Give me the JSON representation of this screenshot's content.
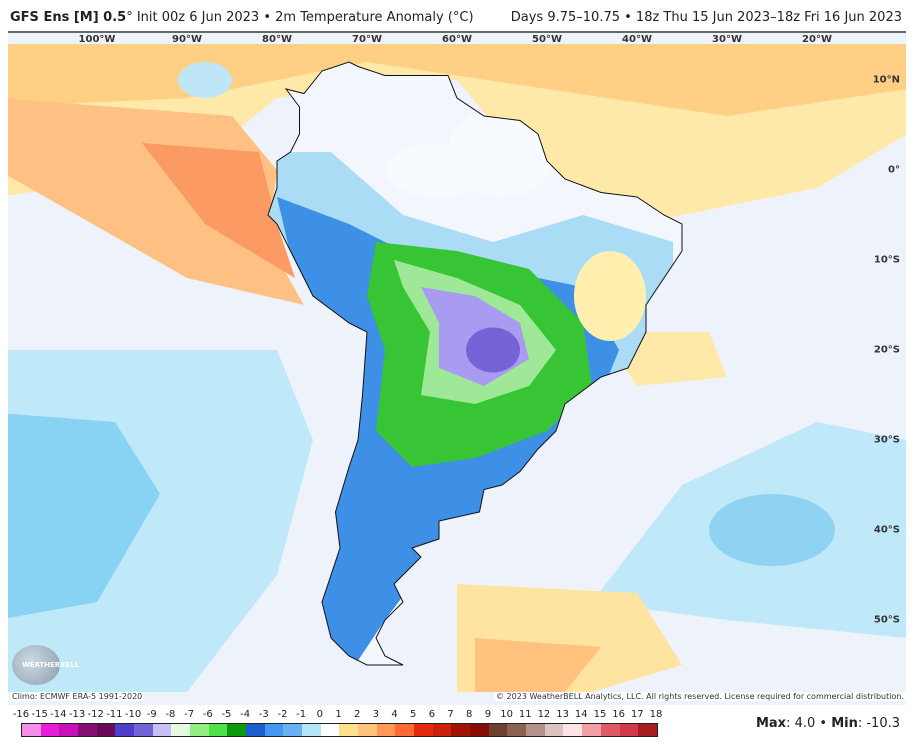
{
  "header": {
    "model": "GFS Ens [M] 0.5",
    "init": "° Init 00z 6 Jun 2023 • 2m Temperature Anomaly (°C)",
    "valid": "Days 9.75–10.75 • 18z Thu 15 Jun 2023–18z Fri 16 Jun 2023"
  },
  "map": {
    "lon_labels": [
      "100°W",
      "90°W",
      "80°W",
      "70°W",
      "60°W",
      "50°W",
      "40°W",
      "30°W",
      "20°W"
    ],
    "lat_labels": [
      "10°N",
      "0°",
      "10°S",
      "20°S",
      "30°S",
      "40°S",
      "50°S"
    ]
  },
  "footer": {
    "climo": "Climo: ECMWF ERA-5 1991-2020",
    "copyright": "© 2023 WeatherBELL Analytics, LLC. All rights reserved. License required for commercial distribution.",
    "logo": "WEATHERBELL",
    "max_label": "Max",
    "max_value": ": 4.0 • ",
    "min_label": "Min",
    "min_value": ": -10.3"
  },
  "colorbar": {
    "labels": [
      "-16",
      "-15",
      "-14",
      "-13",
      "-12",
      "-11",
      "-10",
      "-9",
      "-8",
      "-7",
      "-6",
      "-5",
      "-4",
      "-3",
      "-2",
      "-1",
      "0",
      "1",
      "2",
      "3",
      "4",
      "5",
      "6",
      "7",
      "8",
      "9",
      "10",
      "11",
      "12",
      "13",
      "14",
      "15",
      "16",
      "17",
      "18"
    ],
    "colors": [
      "#f58ee6",
      "#f06ae0",
      "#e81fd6",
      "#c712b8",
      "#a30e96",
      "#861075",
      "#6a0a5a",
      "#520944",
      "#2e1fa3",
      "#3e2db8",
      "#4d3fca",
      "#7364d8",
      "#8b7fe3",
      "#a79cef",
      "#c7c0f5",
      "#e0e0f8",
      "#e6fae0",
      "#b6f5a6",
      "#93ef84",
      "#72e96a",
      "#4fe04a",
      "#34c931",
      "#1eb21c",
      "#0e9a0c",
      "#1a5fd0",
      "#2676e8",
      "#4497ee",
      "#6ab0f2",
      "#90c8f5",
      "#b4e6f8",
      "#ffffff",
      "#fffca8",
      "#ffe08e",
      "#ffc47a"
    ]
  },
  "colorbar2": {
    "colors": [
      "#ffb068",
      "#ff9a56",
      "#ff8646",
      "#ff6a32",
      "#fc4a1e",
      "#e42a0c",
      "#cc200c",
      "#b81a0c",
      "#a01408",
      "#8a0c06",
      "#720404",
      "#5a0c08",
      "#6e4030",
      "#8a6450",
      "#9e7868",
      "#b2928a",
      "#c8a69e",
      "#dcc4c0",
      "#ece2dc",
      "#f8f0ee",
      "#fde4e6",
      "#f8c4c8",
      "#f2a0a6",
      "#e87c86",
      "#de5a66",
      "#d03a48",
      "#be2630",
      "#a81c22"
    ]
  }
}
